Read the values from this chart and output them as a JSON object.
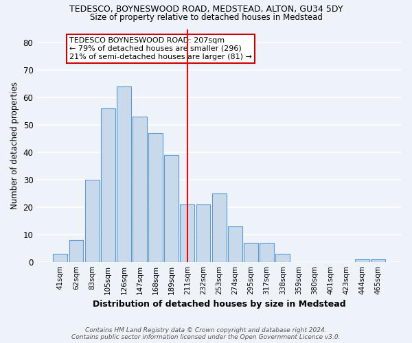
{
  "title": "TEDESCO, BOYNESWOOD ROAD, MEDSTEAD, ALTON, GU34 5DY",
  "subtitle": "Size of property relative to detached houses in Medstead",
  "xlabel": "Distribution of detached houses by size in Medstead",
  "ylabel": "Number of detached properties",
  "bar_labels": [
    "41sqm",
    "62sqm",
    "83sqm",
    "105sqm",
    "126sqm",
    "147sqm",
    "168sqm",
    "189sqm",
    "211sqm",
    "232sqm",
    "253sqm",
    "274sqm",
    "295sqm",
    "317sqm",
    "338sqm",
    "359sqm",
    "380sqm",
    "401sqm",
    "423sqm",
    "444sqm",
    "465sqm"
  ],
  "bar_values": [
    3,
    8,
    30,
    56,
    64,
    53,
    47,
    39,
    21,
    21,
    25,
    13,
    7,
    7,
    3,
    0,
    0,
    0,
    0,
    1,
    1
  ],
  "bar_color": "#c9d9ec",
  "bar_edge_color": "#5b9bd5",
  "vline_index": 8,
  "vline_color": "red",
  "annotation_text": "TEDESCO BOYNESWOOD ROAD: 207sqm\n← 79% of detached houses are smaller (296)\n21% of semi-detached houses are larger (81) →",
  "annotation_box_color": "white",
  "annotation_box_edge": "#cc0000",
  "ylim": [
    0,
    85
  ],
  "yticks": [
    0,
    10,
    20,
    30,
    40,
    50,
    60,
    70,
    80
  ],
  "footer": "Contains HM Land Registry data © Crown copyright and database right 2024.\nContains public sector information licensed under the Open Government Licence v3.0.",
  "bg_color": "#eef2f9",
  "grid_color": "white"
}
